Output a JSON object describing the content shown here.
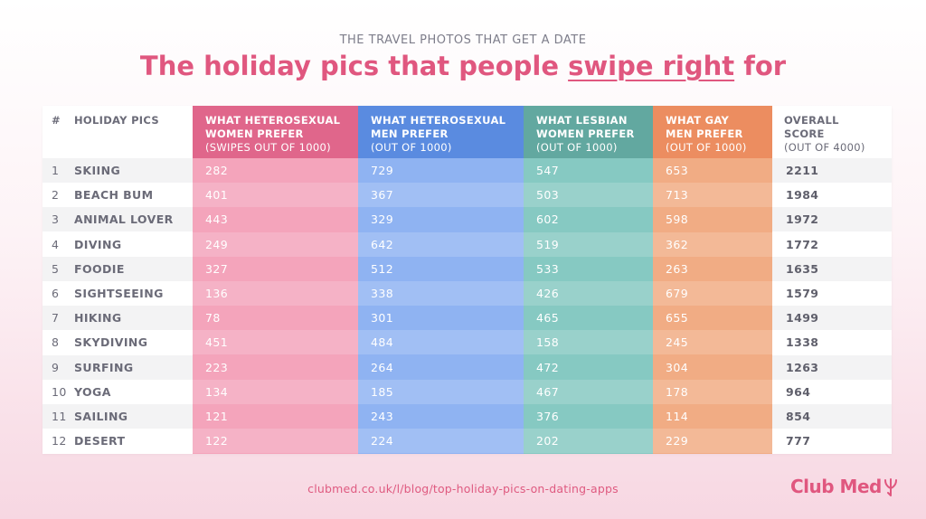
{
  "kicker": "THE TRAVEL PHOTOS THAT GET A DATE",
  "title": {
    "before": "The holiday pics that people ",
    "emph": "swipe right",
    "after": " for"
  },
  "headers": {
    "num": "#",
    "pic": "HOLIDAY PICS",
    "women_het": {
      "label": "WHAT HETEROSEXUAL\nWOMEN PREFER",
      "sub": "(SWIPES OUT OF 1000)"
    },
    "men_het": {
      "label": "WHAT HETEROSEXUAL\nMEN PREFER",
      "sub": "(OUT OF 1000)"
    },
    "women_les": {
      "label": "WHAT LESBIAN\nWOMEN PREFER",
      "sub": "(OUT OF 1000)"
    },
    "men_gay": {
      "label": "WHAT GAY\nMEN PREFER",
      "sub": "(OUT OF 1000)"
    },
    "overall": {
      "label": "OVERALL\nSCORE",
      "sub": "(OUT OF 4000)"
    }
  },
  "colors": {
    "women_het": "#f4a4bb",
    "women_het_header": "#e0668b",
    "men_het": "#8fb3f2",
    "men_het_header": "#5a8be0",
    "women_les": "#86c9c2",
    "women_les_header": "#62a8a0",
    "men_gay": "#f1ac84",
    "men_gay_header": "#ec8d60",
    "accent": "#e0577f"
  },
  "chart_data": {
    "type": "table",
    "title": "The holiday pics that people swipe right for",
    "subtitle": "THE TRAVEL PHOTOS THAT GET A DATE",
    "columns": [
      "#",
      "HOLIDAY PICS",
      "WHAT HETEROSEXUAL WOMEN PREFER (SWIPES OUT OF 1000)",
      "WHAT HETEROSEXUAL MEN PREFER (OUT OF 1000)",
      "WHAT LESBIAN WOMEN PREFER (OUT OF 1000)",
      "WHAT GAY MEN PREFER (OUT OF 1000)",
      "OVERALL SCORE (OUT OF 4000)"
    ],
    "rows": [
      {
        "rank": "1",
        "pic": "SKIING",
        "women_het": "282",
        "men_het": "729",
        "women_les": "547",
        "men_gay": "653",
        "overall": "2211"
      },
      {
        "rank": "2",
        "pic": "BEACH BUM",
        "women_het": "401",
        "men_het": "367",
        "women_les": "503",
        "men_gay": "713",
        "overall": "1984"
      },
      {
        "rank": "3",
        "pic": "ANIMAL LOVER",
        "women_het": "443",
        "men_het": "329",
        "women_les": "602",
        "men_gay": "598",
        "overall": "1972"
      },
      {
        "rank": "4",
        "pic": "DIVING",
        "women_het": "249",
        "men_het": "642",
        "women_les": "519",
        "men_gay": "362",
        "overall": "1772"
      },
      {
        "rank": "5",
        "pic": "FOODIE",
        "women_het": "327",
        "men_het": "512",
        "women_les": "533",
        "men_gay": "263",
        "overall": "1635"
      },
      {
        "rank": "6",
        "pic": "SIGHTSEEING",
        "women_het": "136",
        "men_het": "338",
        "women_les": "426",
        "men_gay": "679",
        "overall": "1579"
      },
      {
        "rank": "7",
        "pic": "HIKING",
        "women_het": "78",
        "men_het": "301",
        "women_les": "465",
        "men_gay": "655",
        "overall": "1499"
      },
      {
        "rank": "8",
        "pic": "SKYDIVING",
        "women_het": "451",
        "men_het": "484",
        "women_les": "158",
        "men_gay": "245",
        "overall": "1338"
      },
      {
        "rank": "9",
        "pic": "SURFING",
        "women_het": "223",
        "men_het": "264",
        "women_les": "472",
        "men_gay": "304",
        "overall": "1263"
      },
      {
        "rank": "10",
        "pic": "YOGA",
        "women_het": "134",
        "men_het": "185",
        "women_les": "467",
        "men_gay": "178",
        "overall": "964"
      },
      {
        "rank": "11",
        "pic": "SAILING",
        "women_het": "121",
        "men_het": "243",
        "women_les": "376",
        "men_gay": "114",
        "overall": "854"
      },
      {
        "rank": "12",
        "pic": "DESERT",
        "women_het": "122",
        "men_het": "224",
        "women_les": "202",
        "men_gay": "229",
        "overall": "777"
      }
    ]
  },
  "footer": {
    "url": "clubmed.co.uk/l/blog/top-holiday-pics-on-dating-apps",
    "logo": "Club Med",
    "logo_icon": "trident-icon"
  }
}
